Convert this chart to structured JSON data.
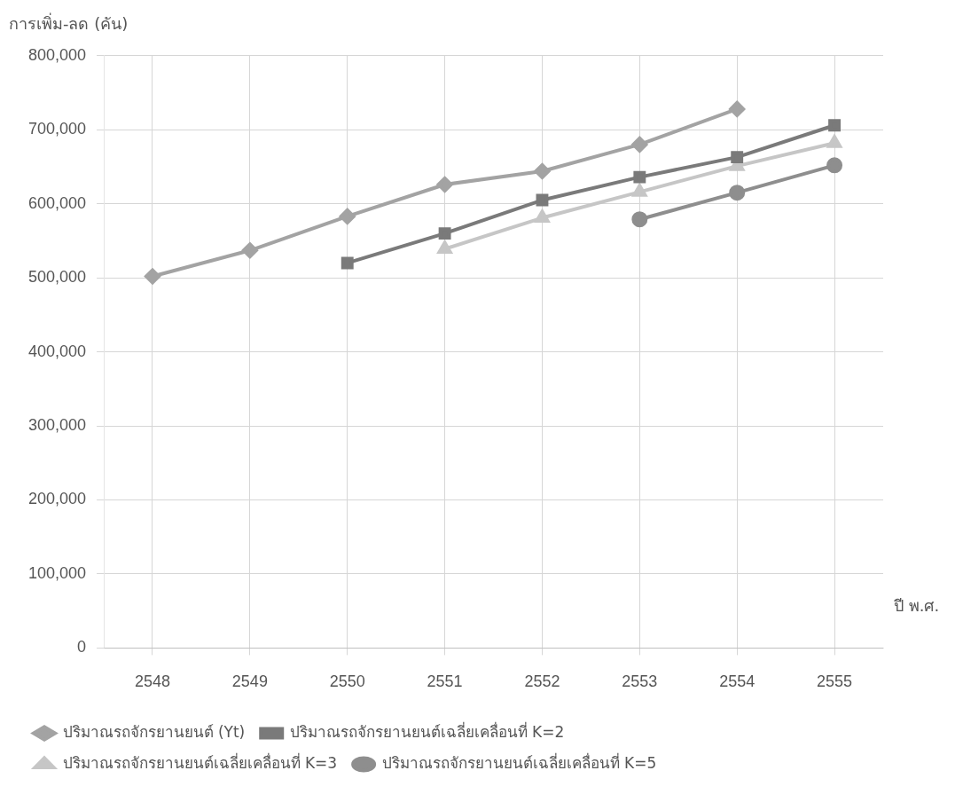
{
  "chart_data": {
    "type": "line",
    "ylabel": "การเพิ่ม-ลด (คัน)",
    "xlabel": "ปี พ.ศ.",
    "categories": [
      "2548",
      "2549",
      "2550",
      "2551",
      "2552",
      "2553",
      "2554",
      "2555"
    ],
    "series": [
      {
        "name": "ปริมาณรถจักรยานยนต์ (Yt)",
        "color": "#a3a3a3",
        "marker": "diamond",
        "values": [
          502000,
          537000,
          583000,
          626000,
          644000,
          680000,
          728000,
          null
        ]
      },
      {
        "name": "ปริมาณรถจักรยานยนต์เฉลี่ยเคลื่อนที่ K=2",
        "color": "#7a7a7a",
        "marker": "square",
        "values": [
          null,
          null,
          520000,
          560000,
          605000,
          636000,
          663000,
          706000
        ]
      },
      {
        "name": "ปริมาณรถจักรยานยนต์เฉลี่ยเคลื่อนที่ K=3",
        "color": "#c6c6c6",
        "marker": "triangle",
        "values": [
          null,
          null,
          null,
          539000,
          581000,
          616000,
          651000,
          682000
        ]
      },
      {
        "name": "ปริมาณรถจักรยานยนต์เฉลี่ยเคลื่อนที่ K=5",
        "color": "#8e8e8e",
        "marker": "circle",
        "values": [
          null,
          null,
          null,
          null,
          null,
          579000,
          615000,
          652000
        ]
      }
    ],
    "ylim": [
      0,
      800000
    ],
    "yticks": [
      {
        "value": 0,
        "label": "0"
      },
      {
        "value": 100000,
        "label": "100,000"
      },
      {
        "value": 200000,
        "label": "200,000"
      },
      {
        "value": 300000,
        "label": "300,000"
      },
      {
        "value": 400000,
        "label": "400,000"
      },
      {
        "value": 500000,
        "label": "500,000"
      },
      {
        "value": 600000,
        "label": "600,000"
      },
      {
        "value": 700000,
        "label": "700,000"
      },
      {
        "value": 800000,
        "label": "800,000"
      }
    ],
    "grid": true,
    "legend": "bottom"
  }
}
